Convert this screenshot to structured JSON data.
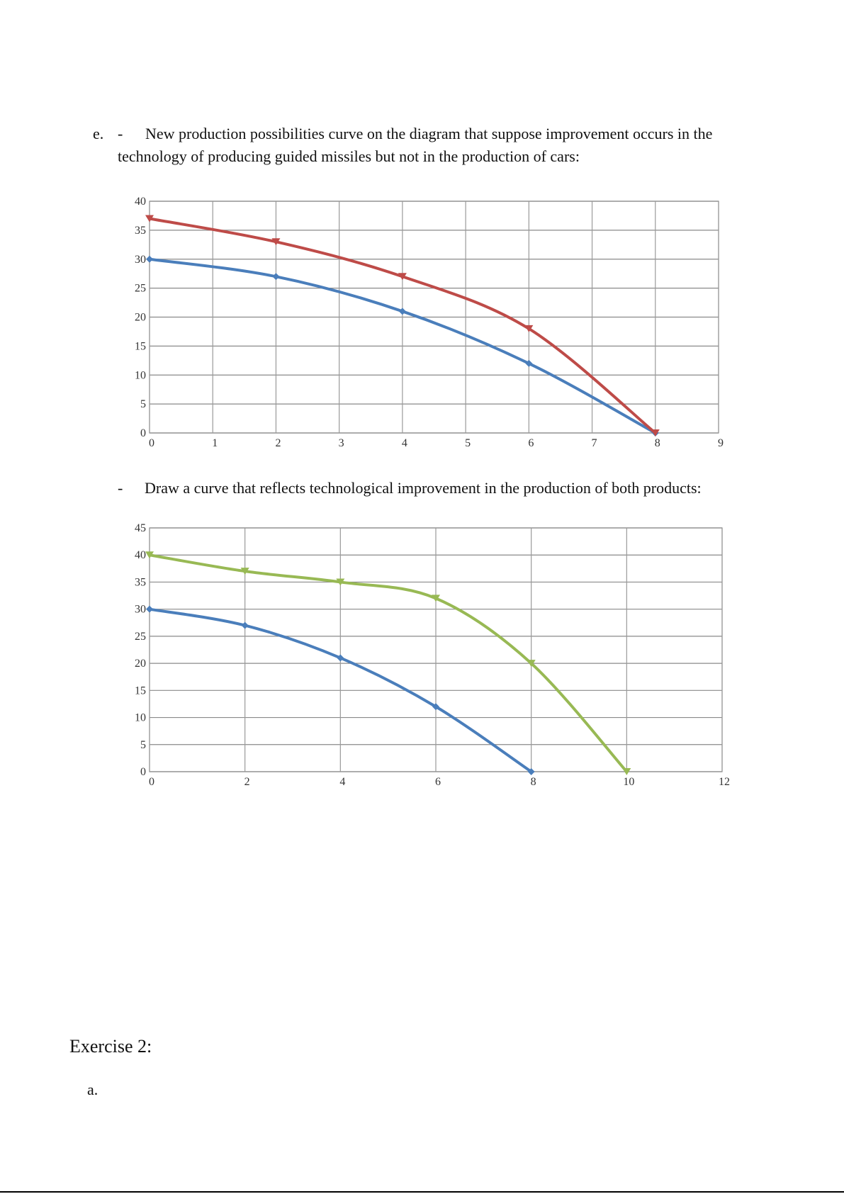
{
  "section_e": {
    "marker": "e.",
    "dash": "-",
    "line1": "New production possibilities curve on the diagram that suppose improvement occurs in the",
    "line2": "technology of producing guided missiles but not in the production of cars:",
    "dash2": "-",
    "line3": "Draw a curve that reflects technological improvement in the production of both products:"
  },
  "exercise": {
    "heading": "Exercise 2:",
    "item": "a."
  },
  "chart_data": [
    {
      "type": "line",
      "title": "",
      "xlabel": "",
      "ylabel": "",
      "xlim": [
        0,
        9
      ],
      "ylim": [
        0,
        40
      ],
      "xticks": [
        0,
        1,
        2,
        3,
        4,
        5,
        6,
        7,
        8,
        9
      ],
      "yticks": [
        0,
        5,
        10,
        15,
        20,
        25,
        30,
        35,
        40
      ],
      "grid": true,
      "series": [
        {
          "color": "#4a7ebb",
          "marker": "diamond",
          "x": [
            0,
            2,
            4,
            6,
            8
          ],
          "y": [
            30,
            27,
            21,
            12,
            0
          ]
        },
        {
          "color": "#be4b48",
          "marker": "triangle",
          "x": [
            0,
            2,
            4,
            6,
            8
          ],
          "y": [
            37,
            33,
            27,
            18,
            0
          ]
        }
      ]
    },
    {
      "type": "line",
      "title": "",
      "xlabel": "",
      "ylabel": "",
      "xlim": [
        0,
        12
      ],
      "ylim": [
        0,
        45
      ],
      "xticks": [
        0,
        2,
        4,
        6,
        8,
        10,
        12
      ],
      "yticks": [
        0,
        5,
        10,
        15,
        20,
        25,
        30,
        35,
        40,
        45
      ],
      "grid": true,
      "series": [
        {
          "color": "#4a7ebb",
          "marker": "diamond",
          "x": [
            0,
            2,
            4,
            6,
            8
          ],
          "y": [
            30,
            27,
            21,
            12,
            0
          ]
        },
        {
          "color": "#98b954",
          "marker": "triangle",
          "x": [
            0,
            2,
            4,
            6,
            8,
            10
          ],
          "y": [
            40,
            37,
            35,
            32,
            20,
            0
          ]
        }
      ]
    }
  ]
}
